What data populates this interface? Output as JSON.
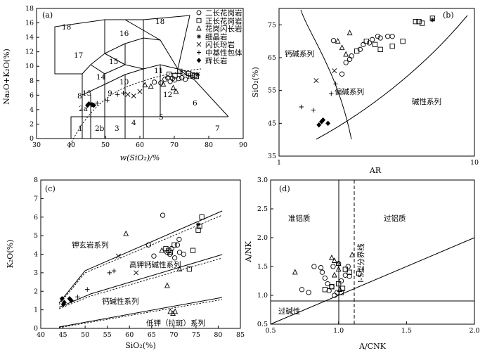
{
  "legend": [
    {
      "symbol": "circle",
      "label": "二长花岗岩"
    },
    {
      "symbol": "square",
      "label": "正长花岗岩"
    },
    {
      "symbol": "triangle",
      "label": "花岗闪长岩"
    },
    {
      "symbol": "asterisk",
      "label": "细晶岩"
    },
    {
      "symbol": "cross",
      "label": "闪长玢岩"
    },
    {
      "symbol": "plus",
      "label": "中基性包体"
    },
    {
      "symbol": "diamond",
      "label": "辉长岩"
    }
  ],
  "chart_data": [
    {
      "id": "a",
      "panel_label": "(a)",
      "type": "scatter",
      "subtype": "TAS classification",
      "xlabel": "w(SiO₂)/%",
      "ylabel": "Na₂O+K₂O(%)",
      "xlim": [
        30,
        90
      ],
      "ylim": [
        0,
        18
      ],
      "x_ticks": [
        "30",
        "40",
        "50",
        "60",
        "70",
        "80",
        "90"
      ],
      "y_ticks": [
        "0",
        "2",
        "4",
        "6",
        "8",
        "10",
        "12",
        "14",
        "16",
        "18"
      ],
      "field_labels": [
        "1",
        "2a",
        "2b",
        "3",
        "4",
        "5",
        "6",
        "7",
        "8",
        "9",
        "10",
        "11",
        "12",
        "13",
        "14",
        "15",
        "16",
        "17",
        "18",
        "18",
        "Ir"
      ],
      "series": [
        {
          "symbol": "diamond",
          "points": [
            [
              44.8,
              4.6
            ],
            [
              45.2,
              4.8
            ],
            [
              46.1,
              4.7
            ],
            [
              46.6,
              4.6
            ]
          ]
        },
        {
          "symbol": "plus",
          "points": [
            [
              47.6,
              4.9
            ],
            [
              50.5,
              5.3
            ],
            [
              53.5,
              6.1
            ],
            [
              55.2,
              6.3
            ]
          ]
        },
        {
          "symbol": "cross",
          "points": [
            [
              56.5,
              6.1
            ],
            [
              58.2,
              5.9
            ],
            [
              60,
              6.5
            ]
          ]
        },
        {
          "symbol": "triangle",
          "points": [
            [
              61.5,
              7.4
            ],
            [
              63.2,
              7.2
            ],
            [
              66.8,
              7.5
            ],
            [
              69.7,
              7.0
            ],
            [
              70.5,
              6.5
            ]
          ]
        },
        {
          "symbol": "circle",
          "points": [
            [
              64.2,
              7.8
            ],
            [
              66.1,
              7.7
            ],
            [
              67.3,
              8.2
            ],
            [
              68.1,
              8.4
            ],
            [
              68.8,
              7.9
            ],
            [
              69.5,
              8.3
            ],
            [
              70.1,
              8.1
            ],
            [
              71.3,
              8.3
            ],
            [
              72.2,
              8.4
            ],
            [
              73.2,
              8.2
            ]
          ]
        },
        {
          "symbol": "square",
          "points": [
            [
              68.5,
              8.9
            ],
            [
              70.2,
              8.7
            ],
            [
              71.6,
              9.3
            ],
            [
              72.5,
              9.1
            ],
            [
              74.2,
              9.0
            ],
            [
              75.3,
              8.8
            ],
            [
              75.9,
              8.7
            ],
            [
              76.4,
              8.6
            ]
          ]
        },
        {
          "symbol": "asterisk",
          "points": [
            [
              76.8,
              8.9
            ]
          ]
        }
      ]
    },
    {
      "id": "b",
      "panel_label": "(b)",
      "type": "scatter",
      "subtype": "SiO2-AR",
      "xlabel": "AR",
      "ylabel": "SiO₂(%)",
      "xscale": "log",
      "xlim": [
        1,
        10
      ],
      "ylim": [
        35,
        80
      ],
      "x_ticks": [
        "1",
        "10"
      ],
      "y_ticks": [
        "35",
        "45",
        "55",
        "65",
        "75"
      ],
      "field_labels": [
        "钙碱系列",
        "偏碱系列",
        "碱性系列"
      ],
      "series": [
        {
          "symbol": "diamond",
          "points": [
            [
              1.6,
              44.5
            ],
            [
              1.65,
              45.5
            ],
            [
              1.68,
              46
            ],
            [
              1.78,
              45
            ]
          ]
        },
        {
          "symbol": "plus",
          "points": [
            [
              1.3,
              50
            ],
            [
              1.5,
              49
            ],
            [
              1.85,
              54
            ],
            [
              1.95,
              57
            ]
          ]
        },
        {
          "symbol": "cross",
          "points": [
            [
              1.55,
              58
            ],
            [
              1.92,
              61
            ]
          ]
        },
        {
          "symbol": "triangle",
          "points": [
            [
              2.3,
              72.5
            ],
            [
              2.0,
              70
            ],
            [
              2.1,
              68
            ],
            [
              2.2,
              66
            ]
          ]
        },
        {
          "symbol": "circle",
          "points": [
            [
              1.9,
              70.2
            ],
            [
              2.2,
              63.5
            ],
            [
              2.3,
              64.5
            ],
            [
              2.35,
              65.5
            ],
            [
              2.6,
              67.5
            ],
            [
              2.7,
              69
            ],
            [
              2.9,
              69.5
            ],
            [
              3.0,
              70.5
            ],
            [
              3.2,
              71.5
            ],
            [
              3.3,
              71
            ],
            [
              3.6,
              71.5
            ],
            [
              3.8,
              71.5
            ],
            [
              2.1,
              60
            ]
          ]
        },
        {
          "symbol": "square",
          "points": [
            [
              2.5,
              67
            ],
            [
              2.8,
              70
            ],
            [
              3.1,
              69
            ],
            [
              3.3,
              67.5
            ],
            [
              3.8,
              68.5
            ],
            [
              4.3,
              70
            ],
            [
              5.0,
              76
            ],
            [
              5.2,
              76
            ],
            [
              5.4,
              75.5
            ],
            [
              6.1,
              77
            ]
          ]
        },
        {
          "symbol": "asterisk",
          "points": [
            [
              6.1,
              76.5
            ]
          ]
        }
      ]
    },
    {
      "id": "c",
      "panel_label": "(c)",
      "type": "scatter",
      "subtype": "K2O-SiO2",
      "xlabel": "SiO₂(%)",
      "ylabel": "K₂O(%)",
      "xlim": [
        40,
        85
      ],
      "ylim": [
        0,
        8
      ],
      "x_ticks": [
        "40",
        "45",
        "50",
        "55",
        "60",
        "65",
        "70",
        "75",
        "80",
        "85"
      ],
      "y_ticks": [
        "0",
        "1",
        "2",
        "3",
        "4",
        "5",
        "6",
        "7",
        "8"
      ],
      "field_labels": [
        "钾玄岩系列",
        "高钾钙碱性系列",
        "钙碱性系列",
        "低钾（拉斑）系列"
      ],
      "series": [
        {
          "symbol": "diamond",
          "points": [
            [
              44.8,
              1.6
            ],
            [
              45.3,
              1.4
            ],
            [
              45.1,
              1.3
            ],
            [
              46.5,
              1.6
            ],
            [
              46.9,
              1.5
            ]
          ]
        },
        {
          "symbol": "plus",
          "points": [
            [
              48.3,
              1.7
            ],
            [
              50.5,
              2.1
            ],
            [
              55.5,
              3.0
            ],
            [
              56.5,
              3.1
            ]
          ]
        },
        {
          "symbol": "cross",
          "points": [
            [
              57.5,
              3.9
            ],
            [
              61.5,
              3.0
            ]
          ]
        },
        {
          "symbol": "triangle",
          "points": [
            [
              59.2,
              5.1
            ],
            [
              67.3,
              4.2
            ],
            [
              68.5,
              2.3
            ],
            [
              69.2,
              0.9
            ],
            [
              69.8,
              0.8
            ],
            [
              70.3,
              0.9
            ],
            [
              71.3,
              3.2
            ]
          ]
        },
        {
          "symbol": "circle",
          "points": [
            [
              64.3,
              4.5
            ],
            [
              65.5,
              3.9
            ],
            [
              67.5,
              6.1
            ],
            [
              68.5,
              4.1
            ],
            [
              69.1,
              4.0
            ],
            [
              69.5,
              4.3
            ],
            [
              70.2,
              3.8
            ],
            [
              70.8,
              4.5
            ],
            [
              71.2,
              4.8
            ],
            [
              71.3,
              4.1
            ],
            [
              72.2,
              4.0
            ]
          ]
        },
        {
          "symbol": "square",
          "points": [
            [
              68.2,
              4.3
            ],
            [
              68.8,
              4.2
            ],
            [
              69.2,
              4.1
            ],
            [
              70.1,
              4.5
            ],
            [
              73.5,
              3.2
            ],
            [
              74.3,
              4.2
            ],
            [
              75.5,
              5.3
            ],
            [
              75.8,
              5.5
            ],
            [
              76.3,
              6.0
            ]
          ]
        },
        {
          "symbol": "asterisk",
          "points": [
            [
              75.5,
              5.6
            ]
          ]
        }
      ]
    },
    {
      "id": "d",
      "panel_label": "(d)",
      "type": "scatter",
      "subtype": "A/NK-A/CNK",
      "xlabel": "A/CNK",
      "ylabel": "A/NK",
      "xlim": [
        0.5,
        2.0
      ],
      "ylim": [
        0.5,
        3.0
      ],
      "x_ticks": [
        "0.5",
        "1.0",
        "1.5",
        "2.0"
      ],
      "y_ticks": [
        "0.5",
        "1.0",
        "1.5",
        "2.0",
        "2.5",
        "3.0"
      ],
      "field_labels": [
        "准铝质",
        "过铝质",
        "过碱性",
        "I-S型分界线"
      ],
      "series": [
        {
          "symbol": "triangle",
          "points": [
            [
              0.68,
              1.4
            ],
            [
              0.95,
              1.65
            ],
            [
              0.97,
              1.6
            ],
            [
              0.97,
              1.35
            ],
            [
              1.0,
              1.55
            ],
            [
              1.0,
              1.45
            ],
            [
              1.01,
              1.1
            ],
            [
              1.1,
              1.7
            ]
          ]
        },
        {
          "symbol": "circle",
          "points": [
            [
              0.73,
              1.1
            ],
            [
              0.78,
              1.05
            ],
            [
              0.82,
              1.5
            ],
            [
              0.87,
              1.48
            ],
            [
              0.88,
              1.4
            ],
            [
              0.9,
              1.3
            ],
            [
              0.92,
              1.2
            ],
            [
              0.95,
              1.15
            ],
            [
              0.96,
              1.5
            ],
            [
              0.97,
              1.0
            ],
            [
              1.0,
              1.55
            ],
            [
              1.02,
              1.25
            ],
            [
              1.05,
              1.35
            ],
            [
              1.07,
              1.5
            ],
            [
              1.08,
              1.33
            ],
            [
              0.93,
              1.08
            ],
            [
              0.99,
              1.05
            ]
          ]
        },
        {
          "symbol": "square",
          "points": [
            [
              0.9,
              1.1
            ],
            [
              0.95,
              1.15
            ],
            [
              1.0,
              1.2
            ],
            [
              1.02,
              1.05
            ],
            [
              1.03,
              1.12
            ],
            [
              1.05,
              1.45
            ],
            [
              1.08,
              1.4
            ],
            [
              1.15,
              1.38
            ]
          ]
        }
      ]
    }
  ]
}
